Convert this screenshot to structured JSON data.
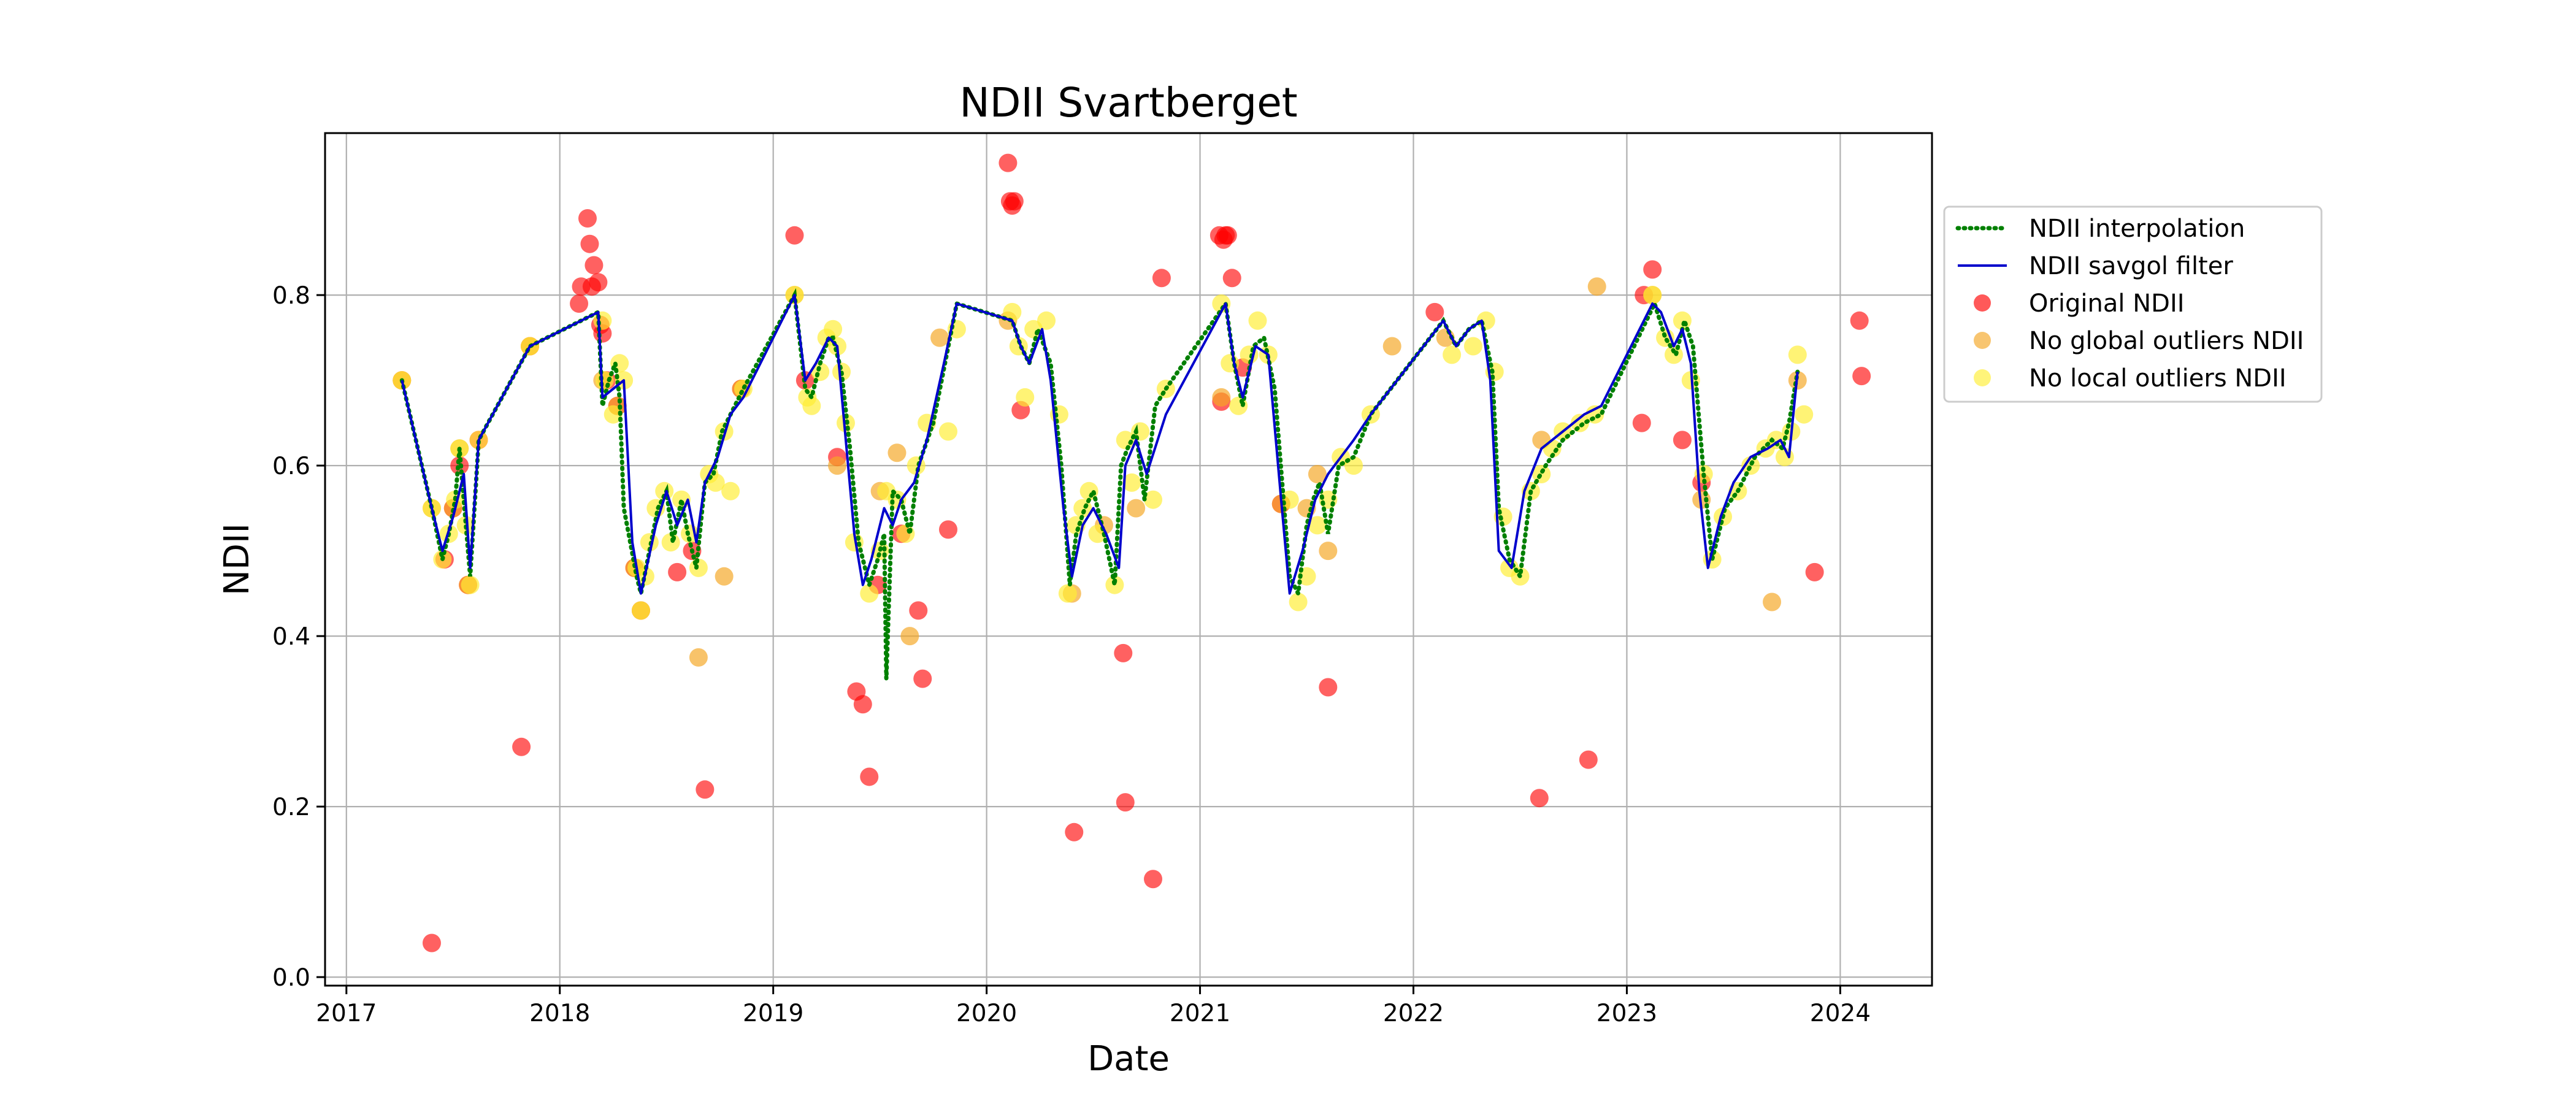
{
  "chart_data": {
    "type": "scatter",
    "title": "NDII Svartberget",
    "xlabel": "Date",
    "ylabel": "NDII",
    "x_ticks": [
      "2017",
      "2018",
      "2019",
      "2020",
      "2021",
      "2022",
      "2023",
      "2024"
    ],
    "y_ticks": [
      "0.0",
      "0.2",
      "0.4",
      "0.6",
      "0.8"
    ],
    "xlim": [
      2016.9,
      2024.43
    ],
    "ylim": [
      -0.01,
      0.99
    ],
    "grid": true,
    "legend_position": "right, outside plot",
    "series": [
      {
        "name": "Original NDII",
        "kind": "points",
        "color": "#ff0000",
        "x": [
          2017.26,
          2017.4,
          2017.46,
          2017.5,
          2017.53,
          2017.57,
          2017.62,
          2017.82,
          2017.86,
          2018.09,
          2018.1,
          2018.13,
          2018.14,
          2018.15,
          2018.16,
          2018.18,
          2018.19,
          2018.2,
          2018.22,
          2018.27,
          2018.35,
          2018.38,
          2018.55,
          2018.62,
          2018.68,
          2018.85,
          2019.1,
          2019.15,
          2019.3,
          2019.39,
          2019.42,
          2019.45,
          2019.49,
          2019.6,
          2019.68,
          2019.7,
          2019.82,
          2020.1,
          2020.11,
          2020.12,
          2020.13,
          2020.16,
          2020.41,
          2020.64,
          2020.65,
          2020.78,
          2020.82,
          2021.09,
          2021.1,
          2021.11,
          2021.12,
          2021.13,
          2021.15,
          2021.2,
          2021.38,
          2021.6,
          2022.1,
          2022.59,
          2022.82,
          2023.07,
          2023.08,
          2023.12,
          2023.26,
          2023.35,
          2023.88,
          2024.09,
          2024.1
        ],
        "y": [
          0.7,
          0.04,
          0.49,
          0.55,
          0.6,
          0.46,
          0.63,
          0.27,
          0.74,
          0.79,
          0.81,
          0.89,
          0.86,
          0.81,
          0.835,
          0.815,
          0.765,
          0.755,
          0.7,
          0.67,
          0.48,
          0.43,
          0.475,
          0.5,
          0.22,
          0.69,
          0.87,
          0.7,
          0.61,
          0.335,
          0.32,
          0.235,
          0.46,
          0.52,
          0.43,
          0.35,
          0.525,
          0.955,
          0.91,
          0.905,
          0.91,
          0.665,
          0.17,
          0.38,
          0.205,
          0.115,
          0.82,
          0.87,
          0.675,
          0.865,
          0.87,
          0.87,
          0.82,
          0.715,
          0.555,
          0.34,
          0.78,
          0.21,
          0.255,
          0.65,
          0.8,
          0.83,
          0.63,
          0.58,
          0.475,
          0.77,
          0.705
        ]
      },
      {
        "name": "No global outliers NDII",
        "kind": "points",
        "color": "#f5a623",
        "x": [
          2017.26,
          2017.4,
          2017.5,
          2017.53,
          2017.57,
          2017.86,
          2018.2,
          2018.27,
          2018.35,
          2018.38,
          2018.65,
          2018.77,
          2018.85,
          2019.1,
          2019.3,
          2019.5,
          2019.58,
          2019.64,
          2019.78,
          2020.1,
          2020.4,
          2020.55,
          2020.7,
          2021.1,
          2021.38,
          2021.5,
          2021.55,
          2021.6,
          2021.9,
          2022.15,
          2022.6,
          2022.86,
          2023.12,
          2023.35,
          2023.68,
          2023.8
        ],
        "y": [
          0.7,
          0.55,
          0.55,
          0.62,
          0.46,
          0.74,
          0.7,
          0.67,
          0.48,
          0.43,
          0.375,
          0.47,
          0.69,
          0.8,
          0.6,
          0.57,
          0.615,
          0.4,
          0.75,
          0.77,
          0.45,
          0.53,
          0.55,
          0.68,
          0.555,
          0.55,
          0.59,
          0.5,
          0.74,
          0.75,
          0.63,
          0.81,
          0.8,
          0.56,
          0.44,
          0.7
        ]
      },
      {
        "name": "No local outliers NDII",
        "kind": "points",
        "color": "#ffee33",
        "x": [
          2017.26,
          2017.4,
          2017.45,
          2017.48,
          2017.51,
          2017.53,
          2017.56,
          2017.58,
          2017.62,
          2017.86,
          2018.2,
          2018.21,
          2018.25,
          2018.28,
          2018.3,
          2018.36,
          2018.38,
          2018.4,
          2018.42,
          2018.45,
          2018.49,
          2018.52,
          2018.57,
          2018.61,
          2018.65,
          2018.7,
          2018.73,
          2018.77,
          2018.8,
          2018.86,
          2019.1,
          2019.16,
          2019.18,
          2019.22,
          2019.25,
          2019.28,
          2019.3,
          2019.32,
          2019.34,
          2019.38,
          2019.45,
          2019.5,
          2019.53,
          2019.58,
          2019.62,
          2019.67,
          2019.72,
          2019.82,
          2019.86,
          2020.12,
          2020.15,
          2020.18,
          2020.22,
          2020.28,
          2020.34,
          2020.38,
          2020.42,
          2020.45,
          2020.48,
          2020.52,
          2020.6,
          2020.65,
          2020.68,
          2020.72,
          2020.78,
          2020.84,
          2021.1,
          2021.14,
          2021.18,
          2021.23,
          2021.27,
          2021.32,
          2021.42,
          2021.46,
          2021.5,
          2021.55,
          2021.6,
          2021.66,
          2021.72,
          2021.8,
          2022.18,
          2022.28,
          2022.34,
          2022.38,
          2022.42,
          2022.45,
          2022.5,
          2022.55,
          2022.6,
          2022.65,
          2022.7,
          2022.78,
          2022.85,
          2023.12,
          2023.18,
          2023.22,
          2023.26,
          2023.3,
          2023.36,
          2023.4,
          2023.45,
          2023.52,
          2023.58,
          2023.65,
          2023.7,
          2023.74,
          2023.77,
          2023.8,
          2023.83
        ],
        "y": [
          0.7,
          0.55,
          0.49,
          0.52,
          0.56,
          0.62,
          0.53,
          0.46,
          0.63,
          0.74,
          0.77,
          0.7,
          0.66,
          0.72,
          0.7,
          0.48,
          0.43,
          0.47,
          0.51,
          0.55,
          0.57,
          0.51,
          0.56,
          0.52,
          0.48,
          0.59,
          0.58,
          0.64,
          0.57,
          0.69,
          0.8,
          0.68,
          0.67,
          0.71,
          0.75,
          0.76,
          0.74,
          0.71,
          0.65,
          0.51,
          0.45,
          0.5,
          0.57,
          0.56,
          0.52,
          0.6,
          0.65,
          0.64,
          0.76,
          0.78,
          0.74,
          0.68,
          0.76,
          0.77,
          0.66,
          0.45,
          0.53,
          0.55,
          0.57,
          0.52,
          0.46,
          0.63,
          0.58,
          0.64,
          0.56,
          0.69,
          0.79,
          0.72,
          0.67,
          0.73,
          0.77,
          0.73,
          0.56,
          0.44,
          0.47,
          0.53,
          0.56,
          0.61,
          0.6,
          0.66,
          0.73,
          0.74,
          0.77,
          0.71,
          0.54,
          0.48,
          0.47,
          0.57,
          0.59,
          0.62,
          0.64,
          0.65,
          0.66,
          0.8,
          0.75,
          0.73,
          0.77,
          0.7,
          0.59,
          0.49,
          0.54,
          0.57,
          0.6,
          0.62,
          0.63,
          0.61,
          0.64,
          0.73,
          0.66
        ]
      },
      {
        "name": "NDII interpolation",
        "kind": "dotted-line",
        "color": "#008000",
        "x": [
          2017.26,
          2017.4,
          2017.45,
          2017.48,
          2017.51,
          2017.53,
          2017.56,
          2017.58,
          2017.62,
          2017.86,
          2018.18,
          2018.2,
          2018.23,
          2018.26,
          2018.28,
          2018.3,
          2018.36,
          2018.38,
          2018.42,
          2018.46,
          2018.5,
          2018.53,
          2018.57,
          2018.6,
          2018.64,
          2018.68,
          2018.72,
          2018.76,
          2018.8,
          2018.86,
          2019.1,
          2019.15,
          2019.18,
          2019.22,
          2019.26,
          2019.28,
          2019.32,
          2019.36,
          2019.4,
          2019.45,
          2019.49,
          2019.52,
          2019.53,
          2019.56,
          2019.6,
          2019.64,
          2019.68,
          2019.75,
          2019.86,
          2020.12,
          2020.16,
          2020.2,
          2020.24,
          2020.3,
          2020.35,
          2020.39,
          2020.42,
          2020.46,
          2020.5,
          2020.55,
          2020.6,
          2020.63,
          2020.66,
          2020.7,
          2020.74,
          2020.79,
          2020.84,
          2021.12,
          2021.16,
          2021.2,
          2021.25,
          2021.3,
          2021.35,
          2021.42,
          2021.46,
          2021.5,
          2021.53,
          2021.56,
          2021.6,
          2021.65,
          2021.72,
          2021.8,
          2022.14,
          2022.2,
          2022.26,
          2022.32,
          2022.37,
          2022.4,
          2022.45,
          2022.5,
          2022.55,
          2022.62,
          2022.7,
          2022.8,
          2022.88,
          2023.13,
          2023.18,
          2023.23,
          2023.27,
          2023.31,
          2023.36,
          2023.4,
          2023.46,
          2023.52,
          2023.6,
          2023.68,
          2023.73,
          2023.76,
          2023.8
        ],
        "y": [
          0.7,
          0.55,
          0.49,
          0.52,
          0.56,
          0.62,
          0.53,
          0.47,
          0.63,
          0.74,
          0.78,
          0.67,
          0.7,
          0.72,
          0.68,
          0.55,
          0.47,
          0.45,
          0.5,
          0.55,
          0.57,
          0.51,
          0.56,
          0.52,
          0.48,
          0.58,
          0.59,
          0.64,
          0.66,
          0.69,
          0.8,
          0.69,
          0.68,
          0.72,
          0.75,
          0.75,
          0.71,
          0.62,
          0.51,
          0.46,
          0.49,
          0.52,
          0.35,
          0.57,
          0.56,
          0.52,
          0.6,
          0.65,
          0.79,
          0.77,
          0.74,
          0.72,
          0.76,
          0.72,
          0.6,
          0.46,
          0.52,
          0.55,
          0.57,
          0.52,
          0.46,
          0.6,
          0.62,
          0.64,
          0.56,
          0.67,
          0.69,
          0.79,
          0.72,
          0.67,
          0.74,
          0.75,
          0.69,
          0.47,
          0.45,
          0.53,
          0.56,
          0.58,
          0.52,
          0.6,
          0.61,
          0.66,
          0.77,
          0.74,
          0.76,
          0.77,
          0.71,
          0.55,
          0.49,
          0.47,
          0.57,
          0.6,
          0.63,
          0.65,
          0.66,
          0.79,
          0.75,
          0.73,
          0.77,
          0.74,
          0.59,
          0.49,
          0.55,
          0.57,
          0.61,
          0.63,
          0.62,
          0.65,
          0.71
        ]
      },
      {
        "name": "NDII savgol filter",
        "kind": "line",
        "color": "#0000cc",
        "x": [
          2017.26,
          2017.4,
          2017.45,
          2017.5,
          2017.55,
          2017.58,
          2017.62,
          2017.86,
          2018.18,
          2018.2,
          2018.25,
          2018.3,
          2018.34,
          2018.38,
          2018.45,
          2018.5,
          2018.55,
          2018.6,
          2018.64,
          2018.68,
          2018.74,
          2018.8,
          2018.86,
          2019.1,
          2019.15,
          2019.2,
          2019.26,
          2019.3,
          2019.34,
          2019.38,
          2019.42,
          2019.46,
          2019.52,
          2019.56,
          2019.6,
          2019.66,
          2019.72,
          2019.8,
          2019.86,
          2020.12,
          2020.16,
          2020.2,
          2020.26,
          2020.3,
          2020.36,
          2020.4,
          2020.45,
          2020.5,
          2020.56,
          2020.62,
          2020.65,
          2020.7,
          2020.75,
          2020.84,
          2021.12,
          2021.16,
          2021.2,
          2021.26,
          2021.32,
          2021.38,
          2021.42,
          2021.48,
          2021.54,
          2021.6,
          2021.66,
          2021.72,
          2021.8,
          2022.14,
          2022.2,
          2022.26,
          2022.32,
          2022.36,
          2022.4,
          2022.46,
          2022.52,
          2022.6,
          2022.7,
          2022.8,
          2022.88,
          2023.12,
          2023.16,
          2023.22,
          2023.26,
          2023.3,
          2023.34,
          2023.38,
          2023.44,
          2023.5,
          2023.58,
          2023.66,
          2023.72,
          2023.76,
          2023.8
        ],
        "y": [
          0.7,
          0.55,
          0.5,
          0.54,
          0.59,
          0.48,
          0.63,
          0.74,
          0.78,
          0.68,
          0.69,
          0.7,
          0.51,
          0.45,
          0.53,
          0.57,
          0.53,
          0.56,
          0.51,
          0.58,
          0.61,
          0.66,
          0.68,
          0.8,
          0.7,
          0.72,
          0.75,
          0.74,
          0.63,
          0.52,
          0.46,
          0.49,
          0.55,
          0.53,
          0.56,
          0.58,
          0.63,
          0.72,
          0.79,
          0.77,
          0.74,
          0.72,
          0.76,
          0.7,
          0.55,
          0.47,
          0.53,
          0.55,
          0.52,
          0.48,
          0.6,
          0.63,
          0.59,
          0.66,
          0.79,
          0.72,
          0.68,
          0.74,
          0.73,
          0.56,
          0.45,
          0.5,
          0.56,
          0.59,
          0.61,
          0.63,
          0.66,
          0.77,
          0.74,
          0.76,
          0.77,
          0.7,
          0.5,
          0.48,
          0.57,
          0.62,
          0.64,
          0.66,
          0.67,
          0.79,
          0.78,
          0.74,
          0.76,
          0.72,
          0.57,
          0.48,
          0.54,
          0.58,
          0.61,
          0.62,
          0.63,
          0.61,
          0.71
        ]
      }
    ]
  }
}
